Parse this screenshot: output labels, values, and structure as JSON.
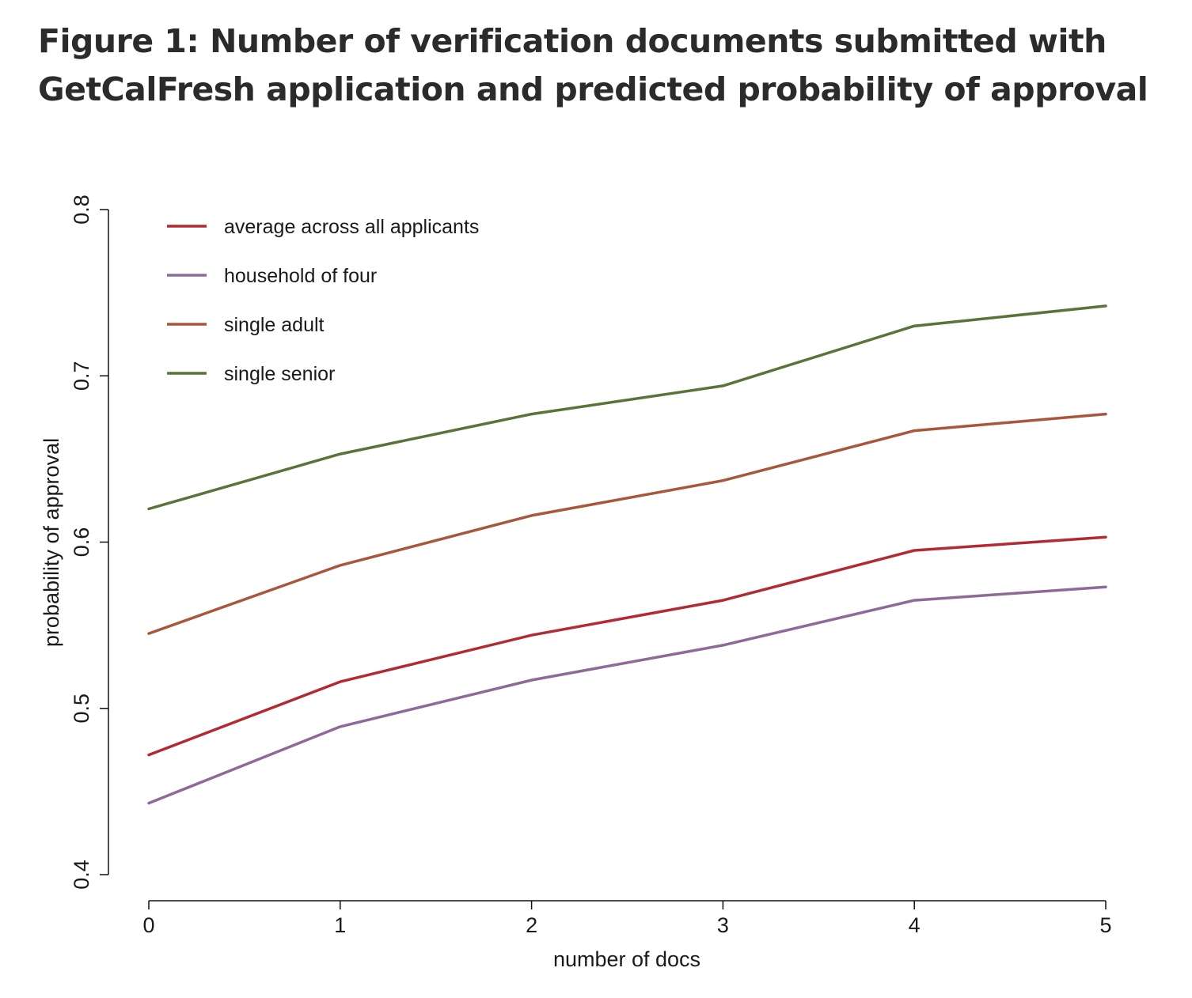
{
  "chart_data": {
    "type": "line",
    "title": "Figure 1: Number of verification documents submitted with GetCalFresh application and predicted probability of approval",
    "xlabel": "number of docs",
    "ylabel": "probability of approval",
    "x": [
      0,
      1,
      2,
      3,
      4,
      5
    ],
    "xticks": [
      "0",
      "1",
      "2",
      "3",
      "4",
      "5"
    ],
    "yticks": [
      "0.4",
      "0.5",
      "0.6",
      "0.7",
      "0.8"
    ],
    "xlim": [
      0,
      5
    ],
    "ylim": [
      0.4,
      0.8
    ],
    "grid": false,
    "legend_position": "top-left",
    "series": [
      {
        "name": "average across all applicants",
        "color": "#b22a32",
        "values": [
          0.472,
          0.516,
          0.544,
          0.565,
          0.595,
          0.603
        ]
      },
      {
        "name": "household of four",
        "color": "#8e6a99",
        "values": [
          0.443,
          0.489,
          0.517,
          0.538,
          0.565,
          0.573
        ]
      },
      {
        "name": "single adult",
        "color": "#a9573a",
        "values": [
          0.545,
          0.586,
          0.616,
          0.637,
          0.667,
          0.677
        ]
      },
      {
        "name": "single senior",
        "color": "#5a7339",
        "values": [
          0.62,
          0.653,
          0.677,
          0.694,
          0.73,
          0.742
        ]
      }
    ]
  }
}
